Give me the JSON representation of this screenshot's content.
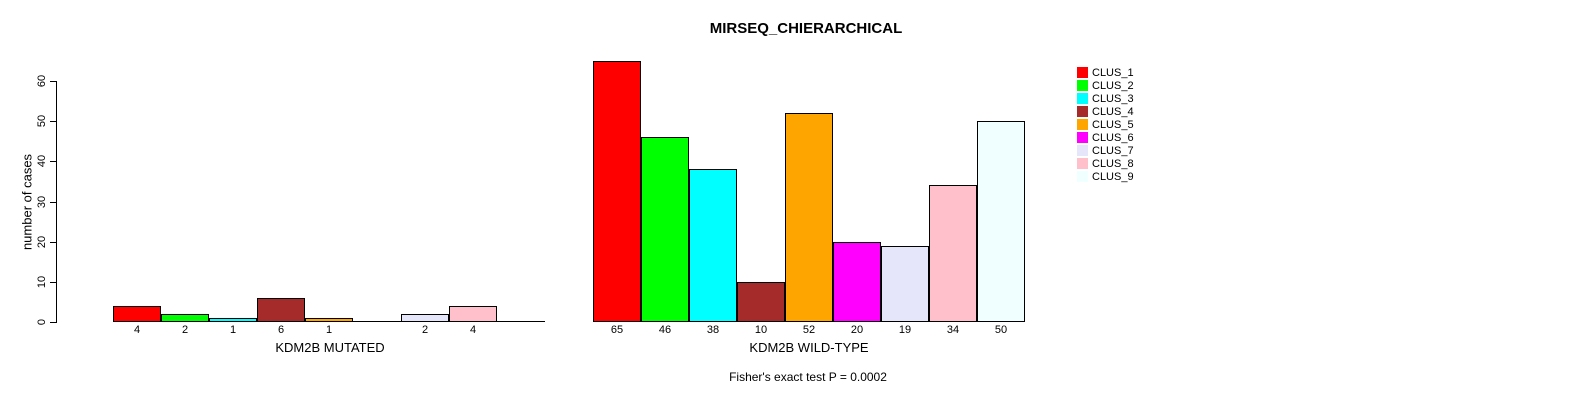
{
  "chart_data": {
    "type": "bar",
    "title": "MIRSEQ_CHIERARCHICAL",
    "ylabel": "number of cases",
    "ylim": [
      0,
      60
    ],
    "yticks": [
      "0",
      "10",
      "20",
      "30",
      "40",
      "50",
      "60"
    ],
    "grid": false,
    "legend_position": "right",
    "annotation": "Fisher's exact test P = 0.0002",
    "groups": [
      {
        "xlabel": "KDM2B MUTATED",
        "values": [
          4,
          2,
          1,
          6,
          1,
          0,
          2,
          4,
          0
        ],
        "bar_labels": [
          "4",
          "2",
          "1",
          "6",
          "1",
          "",
          "2",
          "4",
          ""
        ]
      },
      {
        "xlabel": "KDM2B WILD-TYPE",
        "values": [
          65,
          46,
          38,
          10,
          52,
          20,
          19,
          34,
          50
        ],
        "bar_labels": [
          "65",
          "46",
          "38",
          "10",
          "52",
          "20",
          "19",
          "34",
          "50"
        ]
      }
    ],
    "series": [
      {
        "name": "CLUS_1",
        "color": "#FF0000"
      },
      {
        "name": "CLUS_2",
        "color": "#00FF00"
      },
      {
        "name": "CLUS_3",
        "color": "#00FFFF"
      },
      {
        "name": "CLUS_4",
        "color": "#A52A2A"
      },
      {
        "name": "CLUS_5",
        "color": "#FFA500"
      },
      {
        "name": "CLUS_6",
        "color": "#FF00FF"
      },
      {
        "name": "CLUS_7",
        "color": "#E6E6FA"
      },
      {
        "name": "CLUS_8",
        "color": "#FFC0CB"
      },
      {
        "name": "CLUS_9",
        "color": "#F0FFFF"
      }
    ],
    "axis_color": "#000000",
    "bar_border_color": "#000000"
  }
}
